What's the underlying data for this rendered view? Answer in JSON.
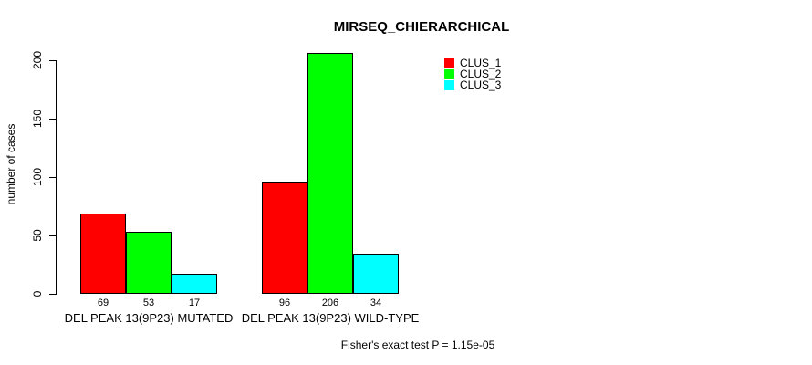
{
  "chart_data": {
    "type": "bar",
    "title": "MIRSEQ_CHIERARCHICAL",
    "ylabel": "number of cases",
    "xlabel": "",
    "footer": "Fisher's exact test P = 1.15e-05",
    "categories": [
      "DEL PEAK 13(9P23) MUTATED",
      "DEL PEAK 13(9P23) WILD-TYPE"
    ],
    "series": [
      {
        "name": "CLUS_1",
        "color": "#ff0000",
        "values": [
          69,
          96
        ]
      },
      {
        "name": "CLUS_2",
        "color": "#00ff00",
        "values": [
          53,
          206
        ]
      },
      {
        "name": "CLUS_3",
        "color": "#00ffff",
        "values": [
          17,
          34
        ]
      }
    ],
    "yticks": [
      0,
      50,
      100,
      150,
      200
    ],
    "ylim": [
      0,
      206
    ],
    "grid": false,
    "show_bar_values": true,
    "legend_position": "top-right",
    "axis_color": "#000000",
    "background": "#ffffff"
  }
}
